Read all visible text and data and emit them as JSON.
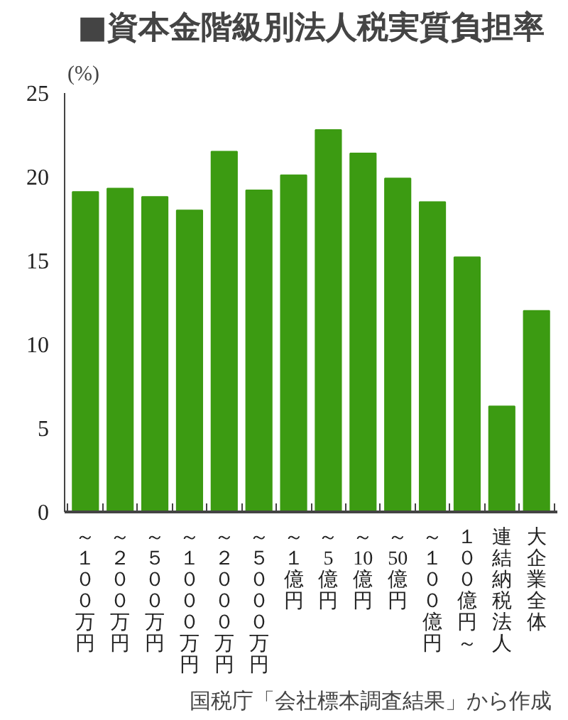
{
  "chart_data": {
    "type": "bar",
    "title": "■資本金階級別法人税実質負担率",
    "ylabel": "(%)",
    "categories": [
      "～１００万円",
      "～２００万円",
      "～５００万円",
      "～１０００万円",
      "～２０００万円",
      "～５０００万円",
      "～１億円",
      "～5億円",
      "～10億円",
      "～50億円",
      "～１００億円",
      "１００億円～",
      "連結納税法人",
      "大企業全体"
    ],
    "values": [
      19.1,
      19.3,
      18.8,
      18.0,
      21.5,
      19.2,
      20.1,
      22.8,
      21.4,
      19.9,
      18.5,
      15.2,
      6.3,
      12.0
    ],
    "color": "#3c9b12",
    "ylim": [
      0,
      25
    ],
    "yticks": [
      0,
      5,
      10,
      15,
      20,
      25
    ],
    "grid": false,
    "annotations": [
      "国税庁「会社標本調査結果」から作成"
    ]
  }
}
